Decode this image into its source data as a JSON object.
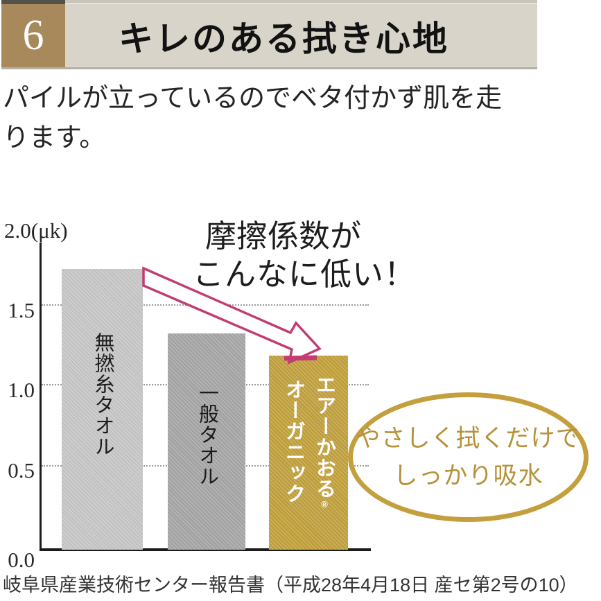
{
  "header": {
    "number": "6",
    "title": "キレのある拭き心地"
  },
  "body": {
    "line1": "パイルが立っているのでベタ付かず肌を走",
    "line2": "ります。"
  },
  "chart_data": {
    "type": "bar",
    "unit_label": "2.0(μk)",
    "unit": "μk",
    "categories": [
      "無撚糸タオル",
      "一般タオル",
      "エアーかおる®オーガニック"
    ],
    "values": [
      1.74,
      1.34,
      1.2
    ],
    "ylim": [
      0,
      2.0
    ],
    "ytick_labels": [
      "1.5",
      "1.0",
      "0.5",
      "0.0"
    ],
    "gridlines_at": [
      1.5,
      1.0,
      0.5
    ],
    "grid_style": "dotted",
    "legend": "none",
    "bar_colors": [
      "#c7c7c7",
      "#a6a6a6",
      "#c2a13c"
    ],
    "labels": {
      "bar1": "無撚糸タオル",
      "bar2": "一般タオル",
      "bar3_col_right": "エアーかおる",
      "bar3_reg_mark": "®",
      "bar3_col_left": "オーガニック"
    },
    "annotation": {
      "line1": "摩擦係数が",
      "line2": "こんなに低い！",
      "arrow_color": "#c13d74"
    },
    "callout": {
      "line1": "やさしく拭くだけで",
      "line2": "しっかり吸水",
      "color": "#b5923a",
      "border_color": "#c49f3d"
    }
  },
  "footer": {
    "source": "岐阜県産業技術センター報告書（平成28年4月18日 産セ第2号の10）"
  }
}
